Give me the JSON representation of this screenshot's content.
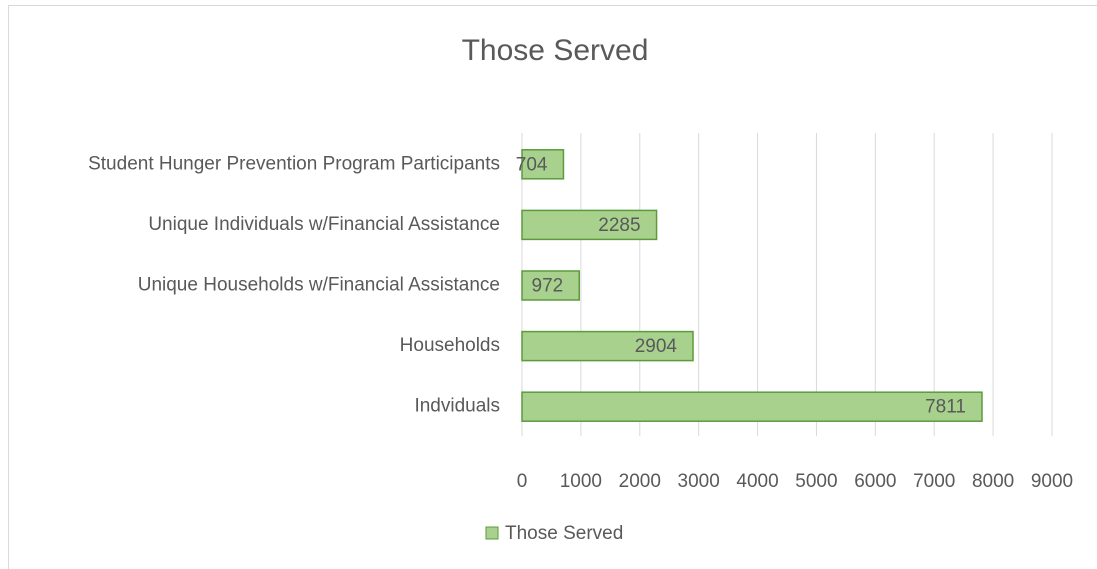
{
  "chart_data": {
    "type": "bar",
    "orientation": "horizontal",
    "title": "Those Served",
    "categories": [
      "Student Hunger Prevention Program Participants",
      "Unique Individuals w/Financial Assistance",
      "Unique Households w/Financial Assistance",
      "Households",
      "Indviduals"
    ],
    "series": [
      {
        "name": "Those Served",
        "color": "#a9d18e",
        "edge_color": "#5b9b3c",
        "values": [
          704,
          2285,
          972,
          2904,
          7811
        ]
      }
    ],
    "xlim": [
      0,
      9000
    ],
    "xticks": [
      0,
      1000,
      2000,
      3000,
      4000,
      5000,
      6000,
      7000,
      8000,
      9000
    ],
    "grid": true,
    "legend": "bottom",
    "data_labels": true
  }
}
